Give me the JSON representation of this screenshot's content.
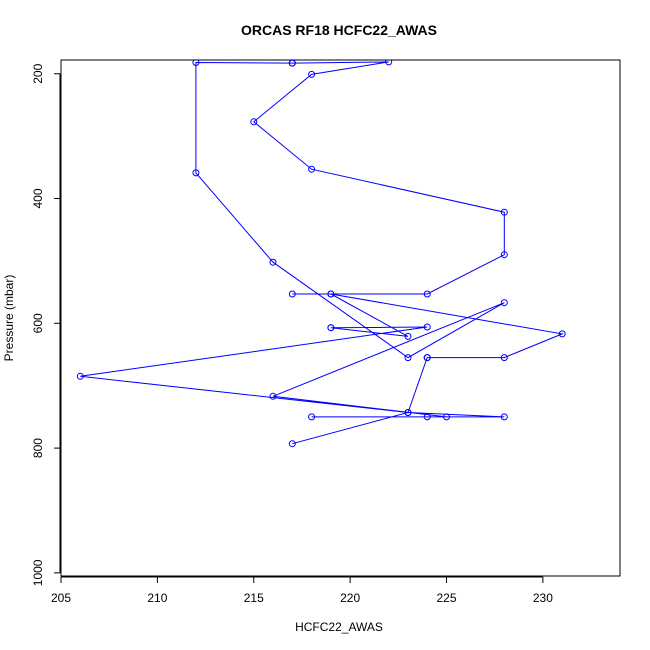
{
  "chart_data": {
    "type": "line",
    "title": "ORCAS RF18 HCFC22_AWAS",
    "xlabel": "HCFC22_AWAS",
    "ylabel": "Pressure (mbar)",
    "xlim": [
      205,
      234
    ],
    "ylim": [
      1005,
      178
    ],
    "y_reversed": true,
    "x_ticks": [
      205,
      210,
      215,
      220,
      225,
      230
    ],
    "y_ticks": [
      200,
      400,
      600,
      800,
      1000
    ],
    "grid": false,
    "legend": "none",
    "series": [
      {
        "color": "#0000ff",
        "marker": "open-circle",
        "points": [
          [
            217,
            793
          ],
          [
            223,
            743
          ],
          [
            224,
            655
          ],
          [
            224,
            655
          ],
          [
            228,
            655
          ],
          [
            231,
            617
          ],
          [
            219,
            553
          ],
          [
            217,
            553
          ],
          [
            224,
            553
          ],
          [
            228,
            490
          ],
          [
            228,
            422
          ],
          [
            218,
            353
          ],
          [
            215,
            277
          ],
          [
            218,
            201
          ],
          [
            222,
            181
          ],
          [
            217,
            183
          ],
          [
            217,
            183
          ],
          [
            212,
            182
          ],
          [
            212,
            359
          ],
          [
            216,
            502
          ],
          [
            223,
            655
          ],
          [
            228,
            567
          ],
          [
            216,
            717
          ],
          [
            225,
            750
          ],
          [
            218,
            750
          ],
          [
            224,
            750
          ],
          [
            228,
            750
          ],
          [
            223,
            743
          ],
          [
            206,
            685
          ],
          [
            224,
            606
          ],
          [
            219,
            607
          ],
          [
            219,
            607
          ],
          [
            223,
            621
          ],
          [
            219,
            553
          ]
        ]
      }
    ]
  }
}
